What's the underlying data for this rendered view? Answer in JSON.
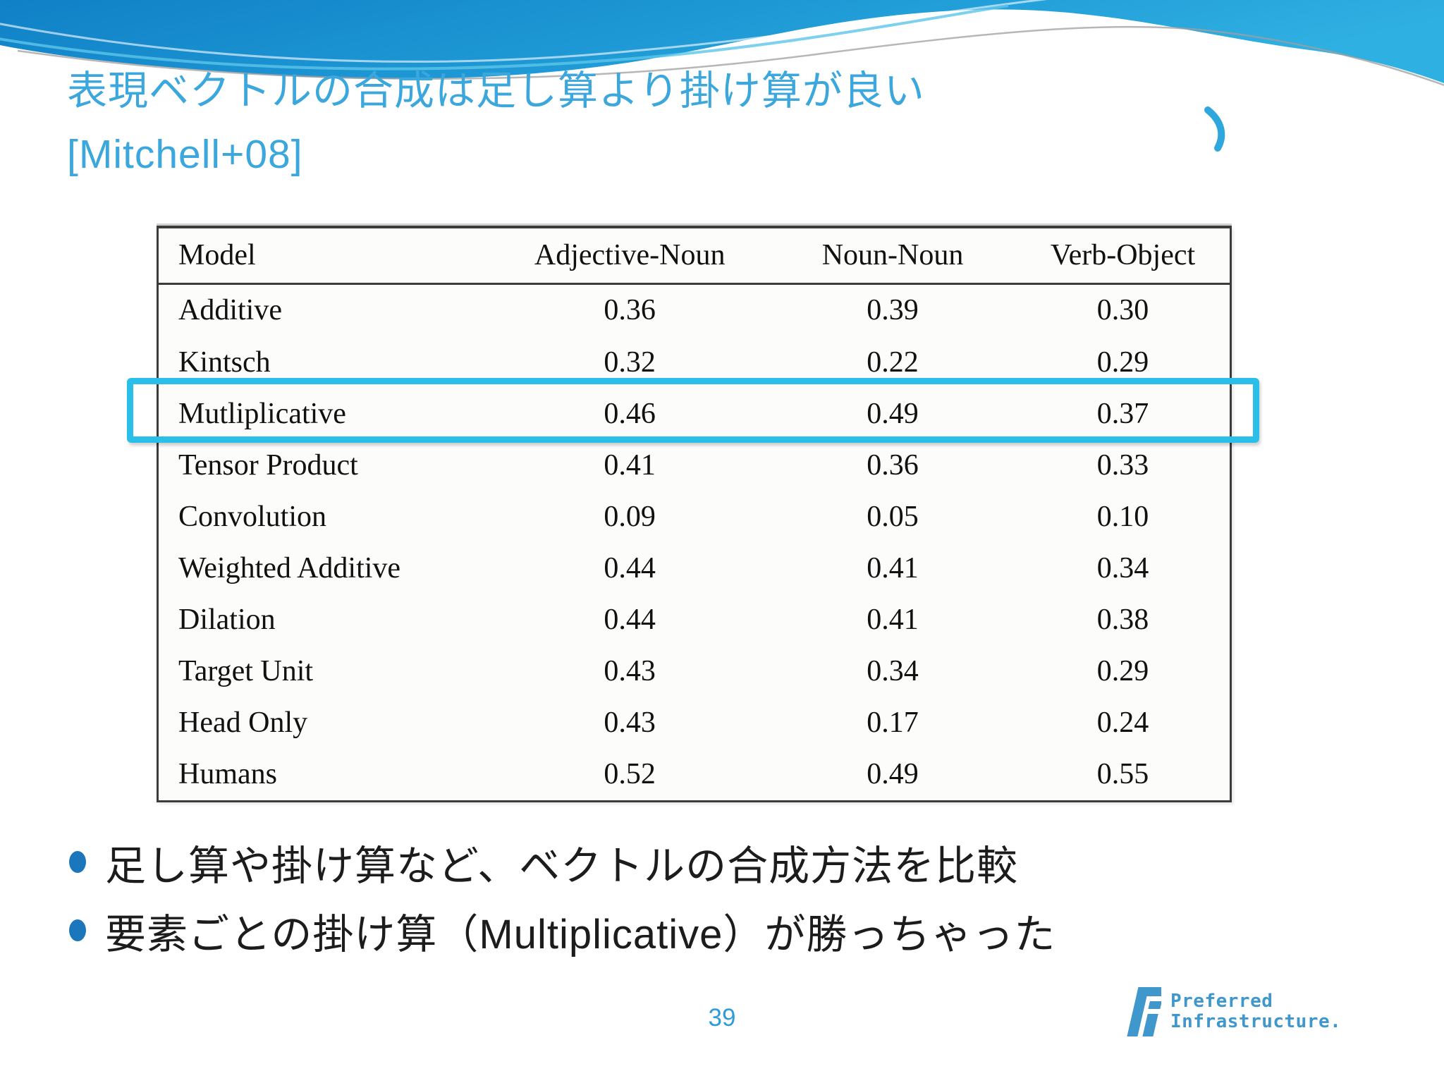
{
  "title": {
    "line1": "表現ベクトルの合成は足し算より掛け算が良い",
    "line2": "[Mitchell+08]"
  },
  "table": {
    "columns": [
      "Model",
      "Adjective-Noun",
      "Noun-Noun",
      "Verb-Object"
    ],
    "rows": [
      {
        "model": "Additive",
        "values": [
          "0.36",
          "0.39",
          "0.30"
        ],
        "highlighted": false
      },
      {
        "model": "Kintsch",
        "values": [
          "0.32",
          "0.22",
          "0.29"
        ],
        "highlighted": false
      },
      {
        "model": "Mutliplicative",
        "values": [
          "0.46",
          "0.49",
          "0.37"
        ],
        "highlighted": true
      },
      {
        "model": "Tensor Product",
        "values": [
          "0.41",
          "0.36",
          "0.33"
        ],
        "highlighted": false
      },
      {
        "model": "Convolution",
        "values": [
          "0.09",
          "0.05",
          "0.10"
        ],
        "highlighted": false
      },
      {
        "model": "Weighted Additive",
        "values": [
          "0.44",
          "0.41",
          "0.34"
        ],
        "highlighted": false
      },
      {
        "model": "Dilation",
        "values": [
          "0.44",
          "0.41",
          "0.38"
        ],
        "highlighted": false
      },
      {
        "model": "Target Unit",
        "values": [
          "0.43",
          "0.34",
          "0.29"
        ],
        "highlighted": false
      },
      {
        "model": "Head Only",
        "values": [
          "0.43",
          "0.17",
          "0.24"
        ],
        "highlighted": false
      },
      {
        "model": "Humans",
        "values": [
          "0.52",
          "0.49",
          "0.55"
        ],
        "highlighted": false
      }
    ],
    "highlighted_model": "Mutliplicative"
  },
  "bullets": [
    "足し算や掛け算など、ベクトルの合成方法を比較",
    "要素ごとの掛け算（Multiplicative）が勝っちゃった"
  ],
  "footer": {
    "page_number": "39",
    "logo_line1": "Preferred",
    "logo_line2": "Infrastructure."
  },
  "colors": {
    "title_blue": "#3BA7DC",
    "highlight_box_cyan": "#29BFE9",
    "bullet_dot_blue": "#1B76BC",
    "page_number_blue": "#2F9CD7",
    "logo_blue": "#4097CB",
    "wave_blue_dark": "#1080C6",
    "wave_blue_light": "#2FB0E2",
    "table_border": "#3c3c3c"
  },
  "chart_data": {
    "type": "table",
    "columns": [
      "Model",
      "Adjective-Noun",
      "Noun-Noun",
      "Verb-Object"
    ],
    "rows": [
      [
        "Additive",
        0.36,
        0.39,
        0.3
      ],
      [
        "Kintsch",
        0.32,
        0.22,
        0.29
      ],
      [
        "Mutliplicative",
        0.46,
        0.49,
        0.37
      ],
      [
        "Tensor Product",
        0.41,
        0.36,
        0.33
      ],
      [
        "Convolution",
        0.09,
        0.05,
        0.1
      ],
      [
        "Weighted Additive",
        0.44,
        0.41,
        0.34
      ],
      [
        "Dilation",
        0.44,
        0.41,
        0.38
      ],
      [
        "Target Unit",
        0.43,
        0.34,
        0.29
      ],
      [
        "Head Only",
        0.43,
        0.17,
        0.24
      ],
      [
        "Humans",
        0.52,
        0.49,
        0.55
      ]
    ],
    "highlighted_row": "Mutliplicative"
  }
}
